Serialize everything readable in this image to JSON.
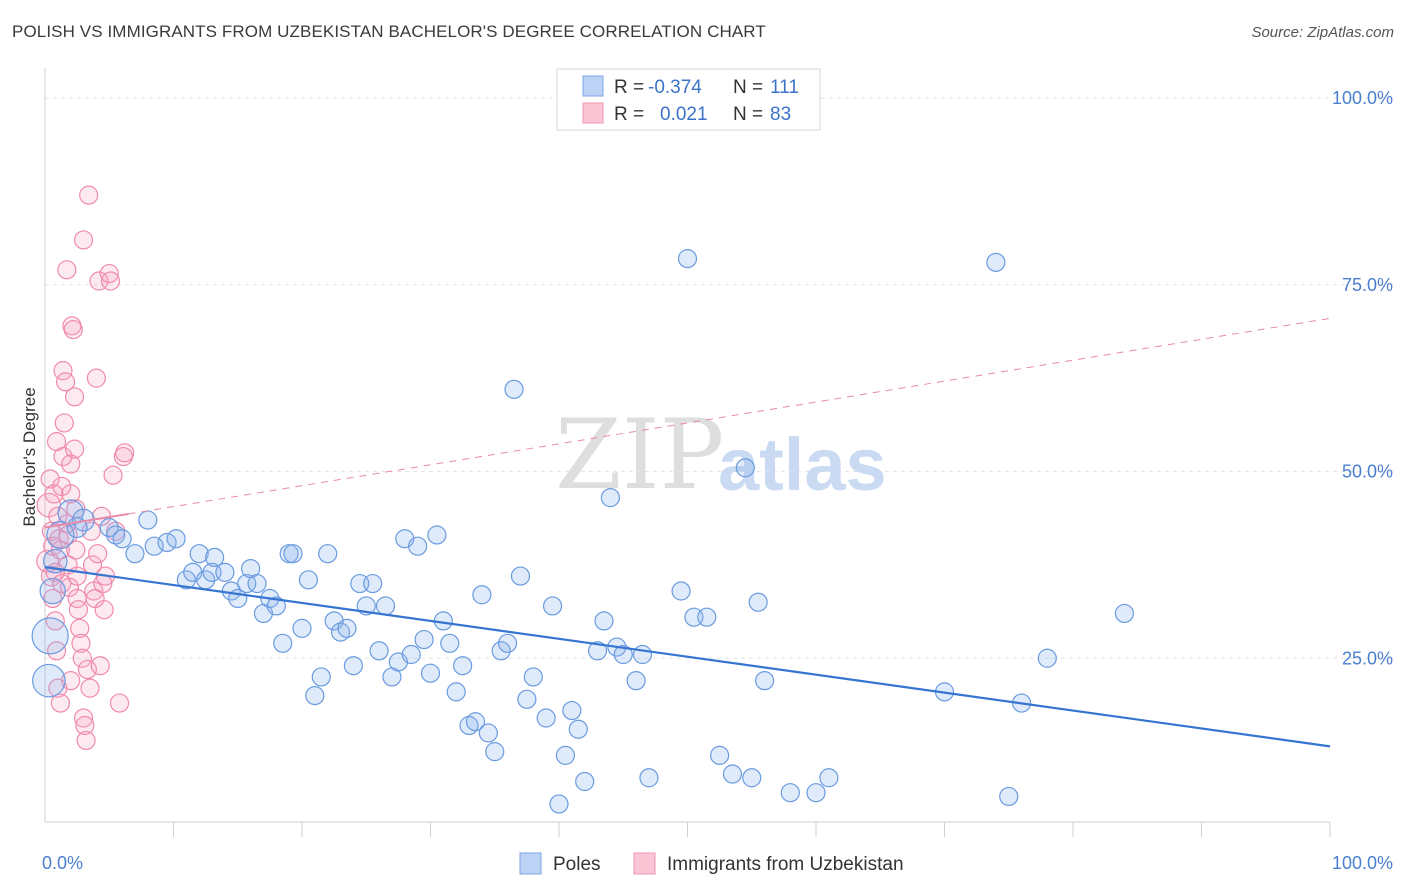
{
  "title": "POLISH VS IMMIGRANTS FROM UZBEKISTAN BACHELOR'S DEGREE CORRELATION CHART",
  "source": "Source: ZipAtlas.com",
  "watermark": {
    "zip": "ZIP",
    "atlas": "atlas"
  },
  "colors": {
    "poles": "#6a9be0",
    "uzbek": "#f08aac",
    "poles_line": "#3674d1",
    "uzbek_line": "#e88aa8"
  },
  "legend_top": {
    "rows": [
      {
        "r_label": "R =",
        "r_value": "-0.374",
        "n_label": "N =",
        "n_value": "111"
      },
      {
        "r_label": "R =",
        "r_value": "0.021",
        "n_label": "N =",
        "n_value": "83"
      }
    ]
  },
  "chart_data": {
    "type": "scatter",
    "xlabel": "",
    "ylabel": "Bachelor's Degree",
    "x_ticks": [
      "0.0%",
      "100.0%"
    ],
    "y_ticks": [
      "100.0%",
      "75.0%",
      "50.0%",
      "25.0%"
    ],
    "xlim": [
      0,
      100
    ],
    "ylim": [
      0,
      100
    ],
    "legend_placement": "bottom-center",
    "grid": true,
    "series": [
      {
        "name": "Poles",
        "trend": {
          "x0": 0,
          "y0": 37.2,
          "x1": 100,
          "y1": 13.2,
          "style": "solid"
        },
        "points": [
          [
            0.3,
            22,
            1.8
          ],
          [
            0.4,
            28,
            2
          ],
          [
            0.6,
            34,
            1.4
          ],
          [
            0.8,
            38,
            1.3
          ],
          [
            1.2,
            41.5,
            1.5
          ],
          [
            2,
            44.5,
            1.4
          ],
          [
            3,
            43.5,
            1.2
          ],
          [
            2.5,
            42.5,
            1.1
          ],
          [
            5,
            42.5,
            1
          ],
          [
            5.5,
            41.5,
            1
          ],
          [
            6,
            41,
            1
          ],
          [
            7,
            39,
            1
          ],
          [
            8,
            43.5,
            1
          ],
          [
            8.5,
            40,
            1
          ],
          [
            9.5,
            40.5,
            1
          ],
          [
            10.2,
            41,
            1
          ],
          [
            11,
            35.5,
            1
          ],
          [
            11.5,
            36.5,
            1
          ],
          [
            12,
            39,
            1
          ],
          [
            12.5,
            35.5,
            1
          ],
          [
            13,
            36.5,
            1
          ],
          [
            13.2,
            38.5,
            1
          ],
          [
            14,
            36.5,
            1
          ],
          [
            14.5,
            34,
            1
          ],
          [
            15,
            33,
            1
          ],
          [
            15.7,
            35,
            1
          ],
          [
            16,
            37,
            1
          ],
          [
            16.5,
            35,
            1
          ],
          [
            17,
            31,
            1
          ],
          [
            17.5,
            33,
            1
          ],
          [
            18,
            32,
            1
          ],
          [
            18.5,
            27,
            1
          ],
          [
            19,
            39,
            1
          ],
          [
            19.3,
            39,
            1
          ],
          [
            20,
            29,
            1
          ],
          [
            20.5,
            35.5,
            1
          ],
          [
            21,
            20,
            1
          ],
          [
            21.5,
            22.5,
            1
          ],
          [
            22,
            39,
            1
          ],
          [
            22.5,
            30,
            1
          ],
          [
            23,
            28.5,
            1
          ],
          [
            23.5,
            29,
            1
          ],
          [
            24,
            24,
            1
          ],
          [
            24.5,
            35,
            1
          ],
          [
            25,
            32,
            1
          ],
          [
            25.5,
            35,
            1
          ],
          [
            26,
            26,
            1
          ],
          [
            26.5,
            32,
            1
          ],
          [
            27,
            22.5,
            1
          ],
          [
            27.5,
            24.5,
            1
          ],
          [
            28,
            41,
            1
          ],
          [
            28.5,
            25.5,
            1
          ],
          [
            29,
            40,
            1
          ],
          [
            29.5,
            27.5,
            1
          ],
          [
            30,
            23,
            1
          ],
          [
            30.5,
            41.5,
            1
          ],
          [
            31,
            30,
            1
          ],
          [
            31.5,
            27,
            1
          ],
          [
            32,
            20.5,
            1
          ],
          [
            32.5,
            24,
            1
          ],
          [
            33,
            16,
            1
          ],
          [
            33.5,
            16.5,
            1
          ],
          [
            34,
            33.5,
            1
          ],
          [
            34.5,
            15,
            1
          ],
          [
            35,
            12.5,
            1
          ],
          [
            35.5,
            26,
            1
          ],
          [
            36,
            27,
            1
          ],
          [
            36.5,
            61,
            1
          ],
          [
            37,
            36,
            1
          ],
          [
            37.5,
            19.5,
            1
          ],
          [
            38,
            22.5,
            1
          ],
          [
            39,
            17,
            1
          ],
          [
            39.5,
            32,
            1
          ],
          [
            40.5,
            12,
            1
          ],
          [
            40,
            5.5,
            1
          ],
          [
            41,
            18,
            1
          ],
          [
            41.5,
            15.5,
            1
          ],
          [
            42,
            8.5,
            1
          ],
          [
            43,
            26,
            1
          ],
          [
            43.5,
            30,
            1
          ],
          [
            44,
            46.5,
            1
          ],
          [
            44.5,
            26.5,
            1
          ],
          [
            45,
            25.5,
            1
          ],
          [
            46,
            22,
            1
          ],
          [
            46.5,
            25.5,
            1
          ],
          [
            47,
            9,
            1
          ],
          [
            49.5,
            34,
            1
          ],
          [
            50,
            78.5,
            1
          ],
          [
            50.5,
            30.5,
            1
          ],
          [
            51.5,
            30.5,
            1
          ],
          [
            52.5,
            12,
            1
          ],
          [
            53.5,
            9.5,
            1
          ],
          [
            54.5,
            50.5,
            1
          ],
          [
            55,
            9,
            1
          ],
          [
            55.5,
            32.5,
            1
          ],
          [
            56,
            22,
            1
          ],
          [
            58,
            7,
            1
          ],
          [
            60,
            7,
            1
          ],
          [
            61,
            9,
            1
          ],
          [
            70,
            20.5,
            1
          ],
          [
            74,
            78,
            1
          ],
          [
            75,
            6.5,
            1
          ],
          [
            76,
            19,
            1
          ],
          [
            78,
            25,
            1
          ],
          [
            84,
            31,
            1
          ]
        ]
      },
      {
        "name": "Immigrants from Uzbekistan",
        "trend": {
          "x0": 0,
          "y0": 42.5,
          "x1": 100,
          "y1": 70.5,
          "style": "dashed"
        },
        "points": [
          [
            0.2,
            38,
            1.2
          ],
          [
            0.3,
            45.5,
            1.3
          ],
          [
            0.4,
            49,
            1
          ],
          [
            0.5,
            36,
            1.1
          ],
          [
            0.5,
            42,
            1
          ],
          [
            0.6,
            33,
            1
          ],
          [
            0.6,
            40,
            1
          ],
          [
            0.7,
            47,
            1
          ],
          [
            0.8,
            36.5,
            1
          ],
          [
            0.8,
            30,
            1
          ],
          [
            0.9,
            54,
            1
          ],
          [
            0.9,
            26,
            1
          ],
          [
            1,
            44,
            1
          ],
          [
            1,
            21,
            1
          ],
          [
            1.1,
            41,
            1
          ],
          [
            1.2,
            39.5,
            1
          ],
          [
            1.2,
            19,
            1
          ],
          [
            1.3,
            35,
            1
          ],
          [
            1.3,
            48,
            1
          ],
          [
            1.4,
            63.5,
            1
          ],
          [
            1.4,
            52,
            1
          ],
          [
            1.5,
            56.5,
            1
          ],
          [
            1.6,
            62,
            1
          ],
          [
            1.7,
            77,
            1
          ],
          [
            1.7,
            43,
            1
          ],
          [
            1.8,
            41.5,
            1
          ],
          [
            1.8,
            37.5,
            1
          ],
          [
            1.9,
            34.5,
            1
          ],
          [
            2,
            51,
            1
          ],
          [
            2,
            47,
            1
          ],
          [
            2,
            22,
            1
          ],
          [
            2.1,
            69.5,
            1
          ],
          [
            2.2,
            69,
            1
          ],
          [
            2.3,
            60,
            1
          ],
          [
            2.3,
            53,
            1
          ],
          [
            2.4,
            45,
            1
          ],
          [
            2.4,
            39.5,
            1
          ],
          [
            2.5,
            36,
            1
          ],
          [
            2.5,
            33,
            1
          ],
          [
            2.6,
            31.5,
            1
          ],
          [
            2.7,
            29,
            1
          ],
          [
            2.8,
            27,
            1
          ],
          [
            2.9,
            25,
            1
          ],
          [
            3,
            81,
            1
          ],
          [
            3,
            17,
            1
          ],
          [
            3.1,
            16,
            1
          ],
          [
            3.2,
            14,
            1
          ],
          [
            3.3,
            23.5,
            1
          ],
          [
            3.4,
            87,
            1
          ],
          [
            3.5,
            21,
            1
          ],
          [
            3.6,
            42,
            1
          ],
          [
            3.7,
            37.5,
            1
          ],
          [
            3.8,
            34,
            1
          ],
          [
            3.9,
            33,
            1
          ],
          [
            4,
            62.5,
            1
          ],
          [
            4.1,
            39,
            1
          ],
          [
            4.2,
            75.5,
            1
          ],
          [
            4.3,
            24,
            1
          ],
          [
            4.4,
            44,
            1
          ],
          [
            4.5,
            35,
            1
          ],
          [
            4.6,
            31.5,
            1
          ],
          [
            4.7,
            36,
            1
          ],
          [
            5,
            76.5,
            1
          ],
          [
            5.1,
            75.5,
            1
          ],
          [
            5.3,
            49.5,
            1
          ],
          [
            5.5,
            42,
            1
          ],
          [
            5.8,
            19,
            1
          ],
          [
            6.1,
            52,
            1
          ],
          [
            6.2,
            52.5,
            1
          ]
        ]
      }
    ]
  },
  "bottom_legend": [
    {
      "label": "Poles"
    },
    {
      "label": "Immigrants from Uzbekistan"
    }
  ]
}
